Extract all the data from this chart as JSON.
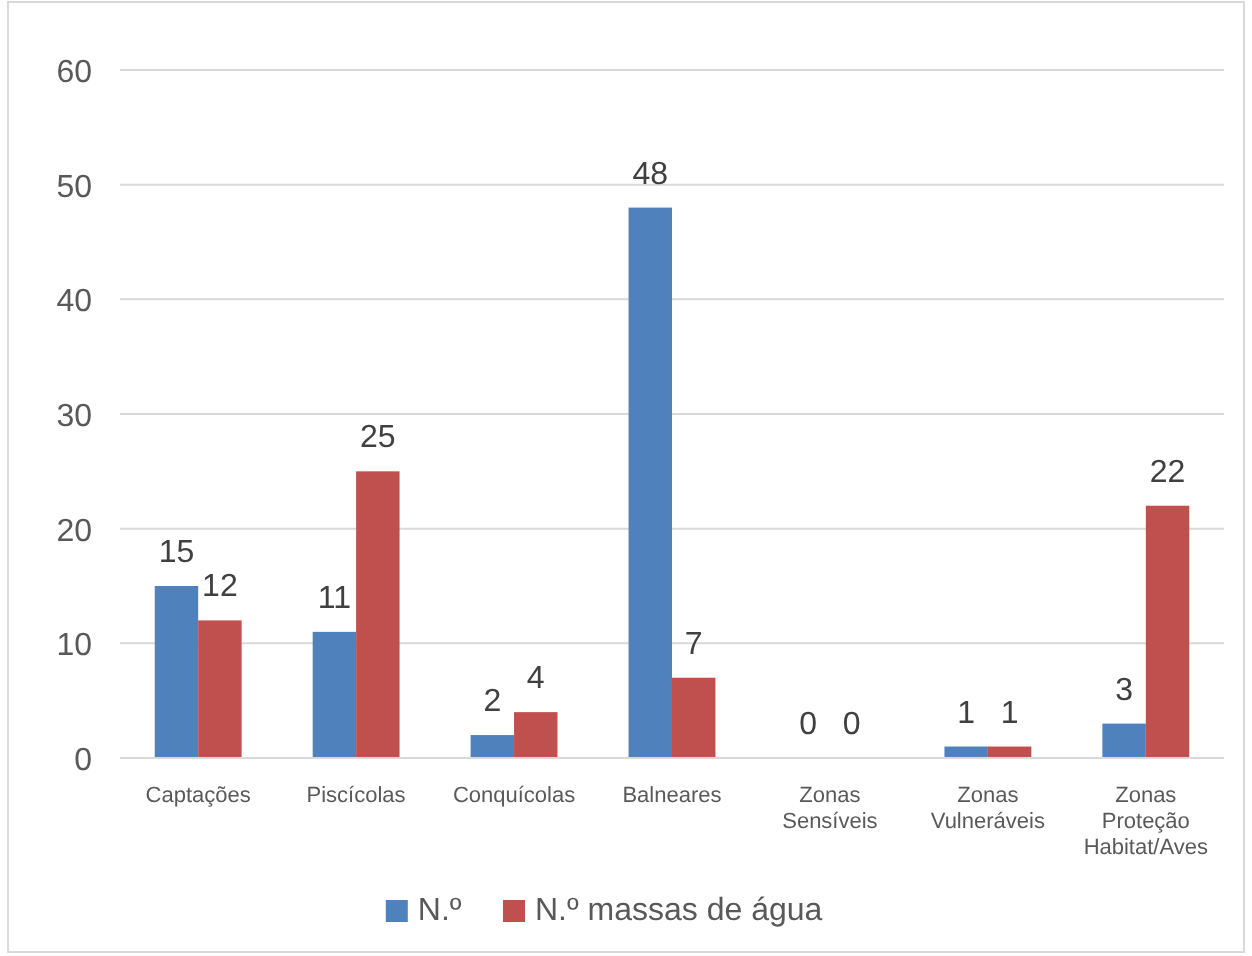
{
  "chart_data": {
    "type": "bar",
    "categories": [
      "Captações",
      "Piscícolas",
      "Conquícolas",
      "Balneares",
      "Zonas Sensíveis",
      "Zonas Vulneráveis",
      "Zonas Proteção Habitat/Aves"
    ],
    "series": [
      {
        "name": "N.º",
        "color": "#4f81bd",
        "values": [
          15,
          11,
          2,
          48,
          0,
          1,
          3
        ]
      },
      {
        "name": "N.º massas de água",
        "color": "#c0504d",
        "values": [
          12,
          25,
          4,
          7,
          0,
          1,
          22
        ]
      }
    ],
    "ylim": [
      0,
      60
    ],
    "yticks": [
      0,
      10,
      20,
      30,
      40,
      50,
      60
    ],
    "grid": "y",
    "legend": "bottom",
    "data_labels": true
  }
}
